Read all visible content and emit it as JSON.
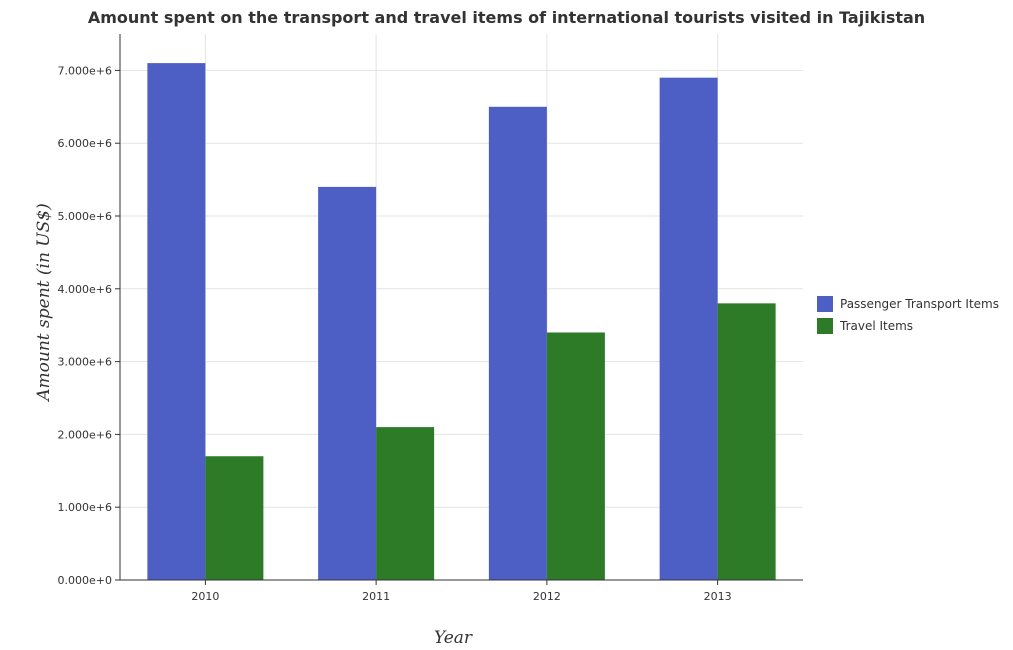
{
  "chart_data": {
    "type": "bar",
    "title": "Amount spent on the transport and travel items of international tourists visited in Tajikistan",
    "xlabel": "Year",
    "ylabel": "Amount spent (in US$)",
    "categories": [
      "2010",
      "2011",
      "2012",
      "2013"
    ],
    "series": [
      {
        "name": "Passenger Transport Items",
        "color": "#4d5ec4",
        "values": [
          7100000,
          5400000,
          6500000,
          6900000
        ]
      },
      {
        "name": "Travel Items",
        "color": "#2d7a27",
        "values": [
          1700000,
          2100000,
          3400000,
          3800000
        ]
      }
    ],
    "ylim": [
      0,
      7500000
    ],
    "yticks": [
      0,
      1000000,
      2000000,
      3000000,
      4000000,
      5000000,
      6000000,
      7000000
    ],
    "ytick_labels": [
      "0.000e+0",
      "1.000e+6",
      "2.000e+6",
      "3.000e+6",
      "4.000e+6",
      "5.000e+6",
      "6.000e+6",
      "7.000e+6"
    ],
    "grid": true,
    "legend_position": "right"
  }
}
